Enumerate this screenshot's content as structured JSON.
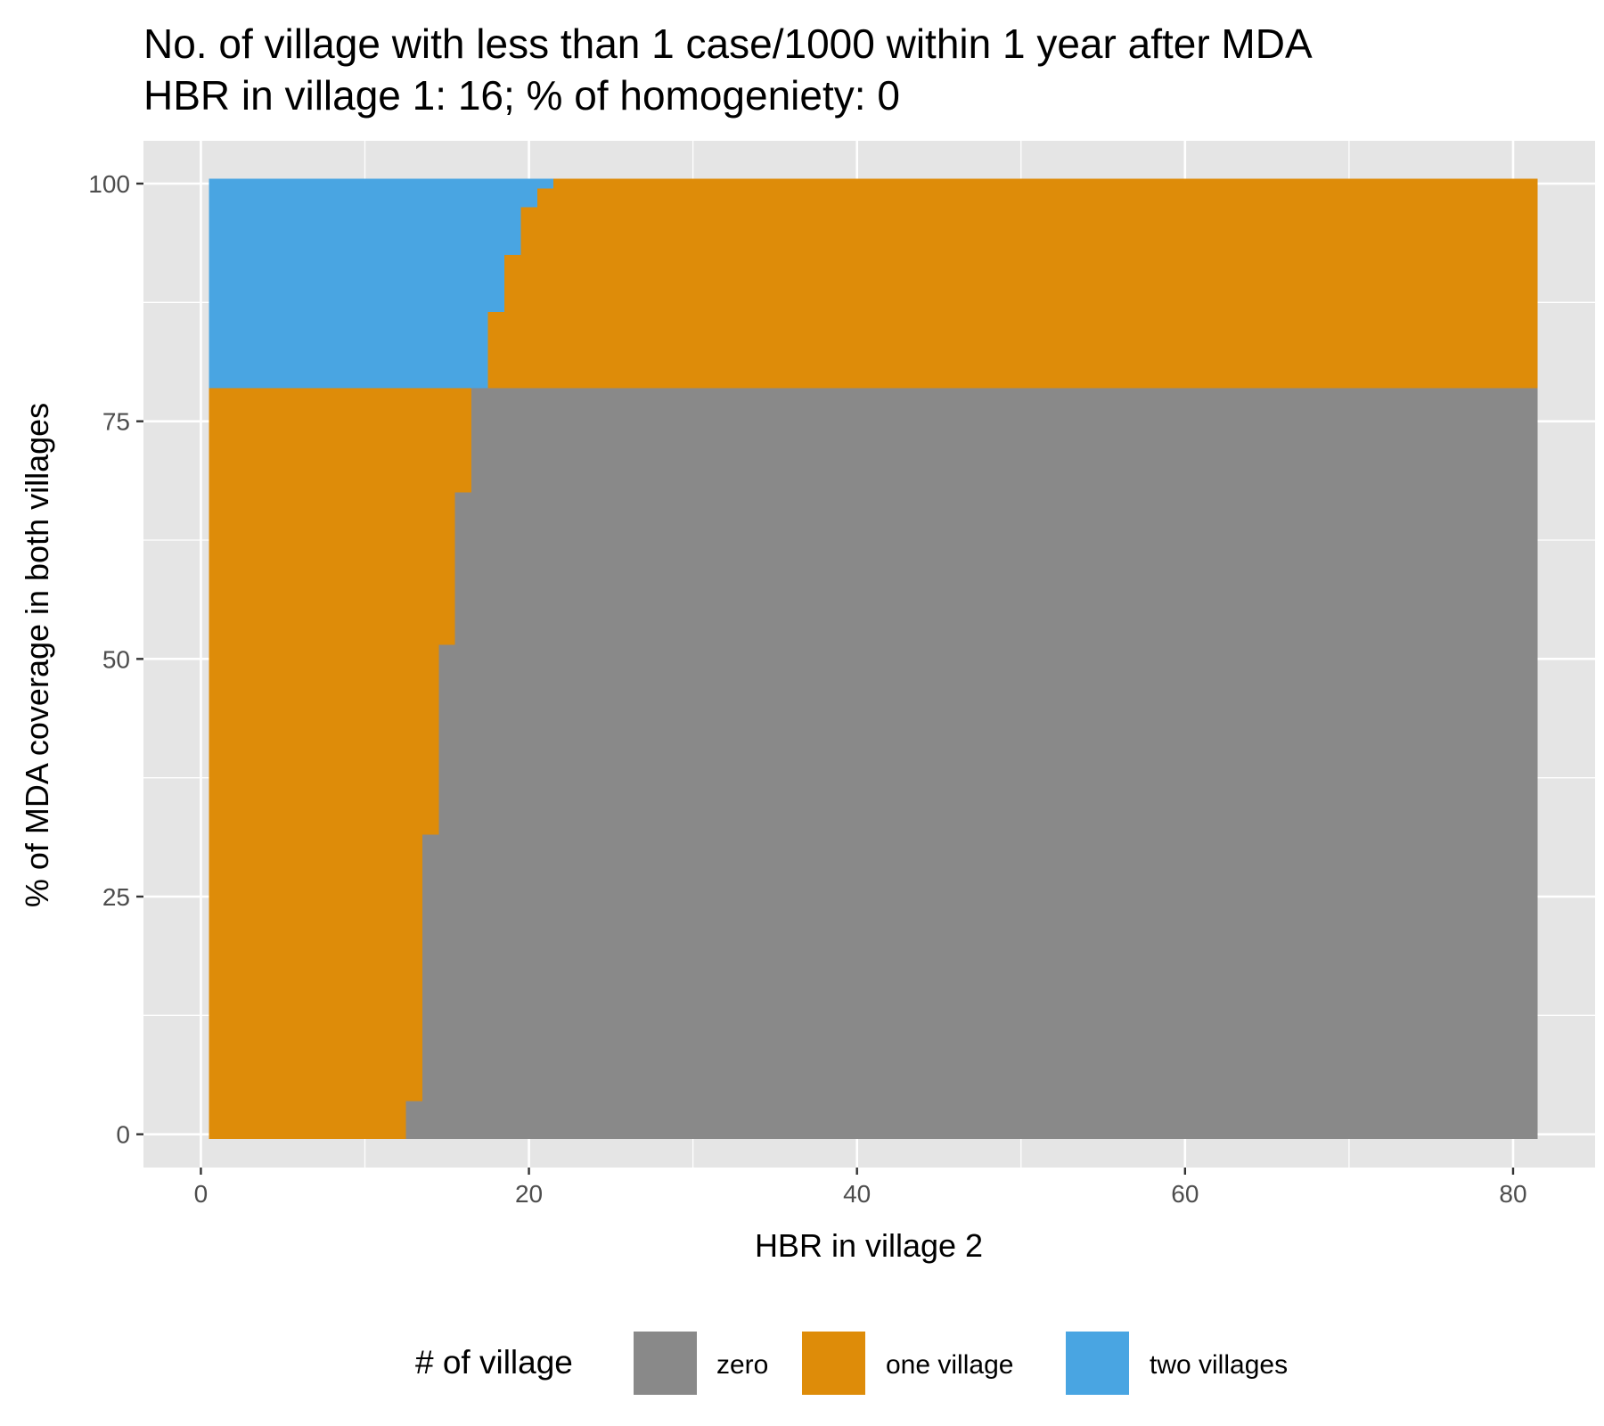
{
  "chart_data": {
    "type": "heatmap",
    "title": "No. of village with less than 1 case/1000 within 1 year after MDA",
    "subtitle": "HBR in village 1: 16; % of homogeniety: 0",
    "xlabel": "HBR in village 2",
    "ylabel": "% of MDA coverage in both villages",
    "xlim": [
      -3.5,
      85
    ],
    "ylim": [
      -3.5,
      104.5
    ],
    "x_ticks": [
      0,
      20,
      40,
      60,
      80
    ],
    "x_tick_labels": [
      "0",
      "20",
      "40",
      "60",
      "80"
    ],
    "y_ticks": [
      0,
      25,
      50,
      75,
      100
    ],
    "y_tick_labels": [
      "0",
      "25",
      "50",
      "75",
      "100"
    ],
    "grid": true,
    "panel_background": "#e5e5e5",
    "legend": {
      "title": "# of village",
      "position": "bottom",
      "items": [
        {
          "key": "zero",
          "label": "zero",
          "color": "#898989"
        },
        {
          "key": "one",
          "label": "one village",
          "color": "#de8c09"
        },
        {
          "key": "two",
          "label": "two villages",
          "color": "#49a5e2"
        }
      ]
    },
    "x_range": [
      1,
      81
    ],
    "y_range": [
      0,
      100
    ],
    "tile_width": 1,
    "tile_height": 1,
    "series": [
      {
        "name": "zero",
        "color": "#898989",
        "x_threshold_by_y": [
          {
            "y_min": 0,
            "y_max": 3,
            "x_from": 13
          },
          {
            "y_min": 4,
            "y_max": 31,
            "x_from": 14
          },
          {
            "y_min": 32,
            "y_max": 51,
            "x_from": 15
          },
          {
            "y_min": 52,
            "y_max": 67,
            "x_from": 16
          },
          {
            "y_min": 68,
            "y_max": 78,
            "x_from": 17
          }
        ]
      },
      {
        "name": "one village",
        "color": "#de8c09",
        "region": "remaining cells left of zero region for y 0-78, and right of two-villages region for y 79-100"
      },
      {
        "name": "two villages",
        "color": "#49a5e2",
        "x_threshold_by_y": [
          {
            "y_min": 79,
            "y_max": 86,
            "x_to": 17
          },
          {
            "y_min": 87,
            "y_max": 92,
            "x_to": 18
          },
          {
            "y_min": 93,
            "y_max": 97,
            "x_to": 19
          },
          {
            "y_min": 98,
            "y_max": 99,
            "x_to": 20
          },
          {
            "y_min": 100,
            "y_max": 100,
            "x_to": 21
          }
        ]
      }
    ]
  }
}
